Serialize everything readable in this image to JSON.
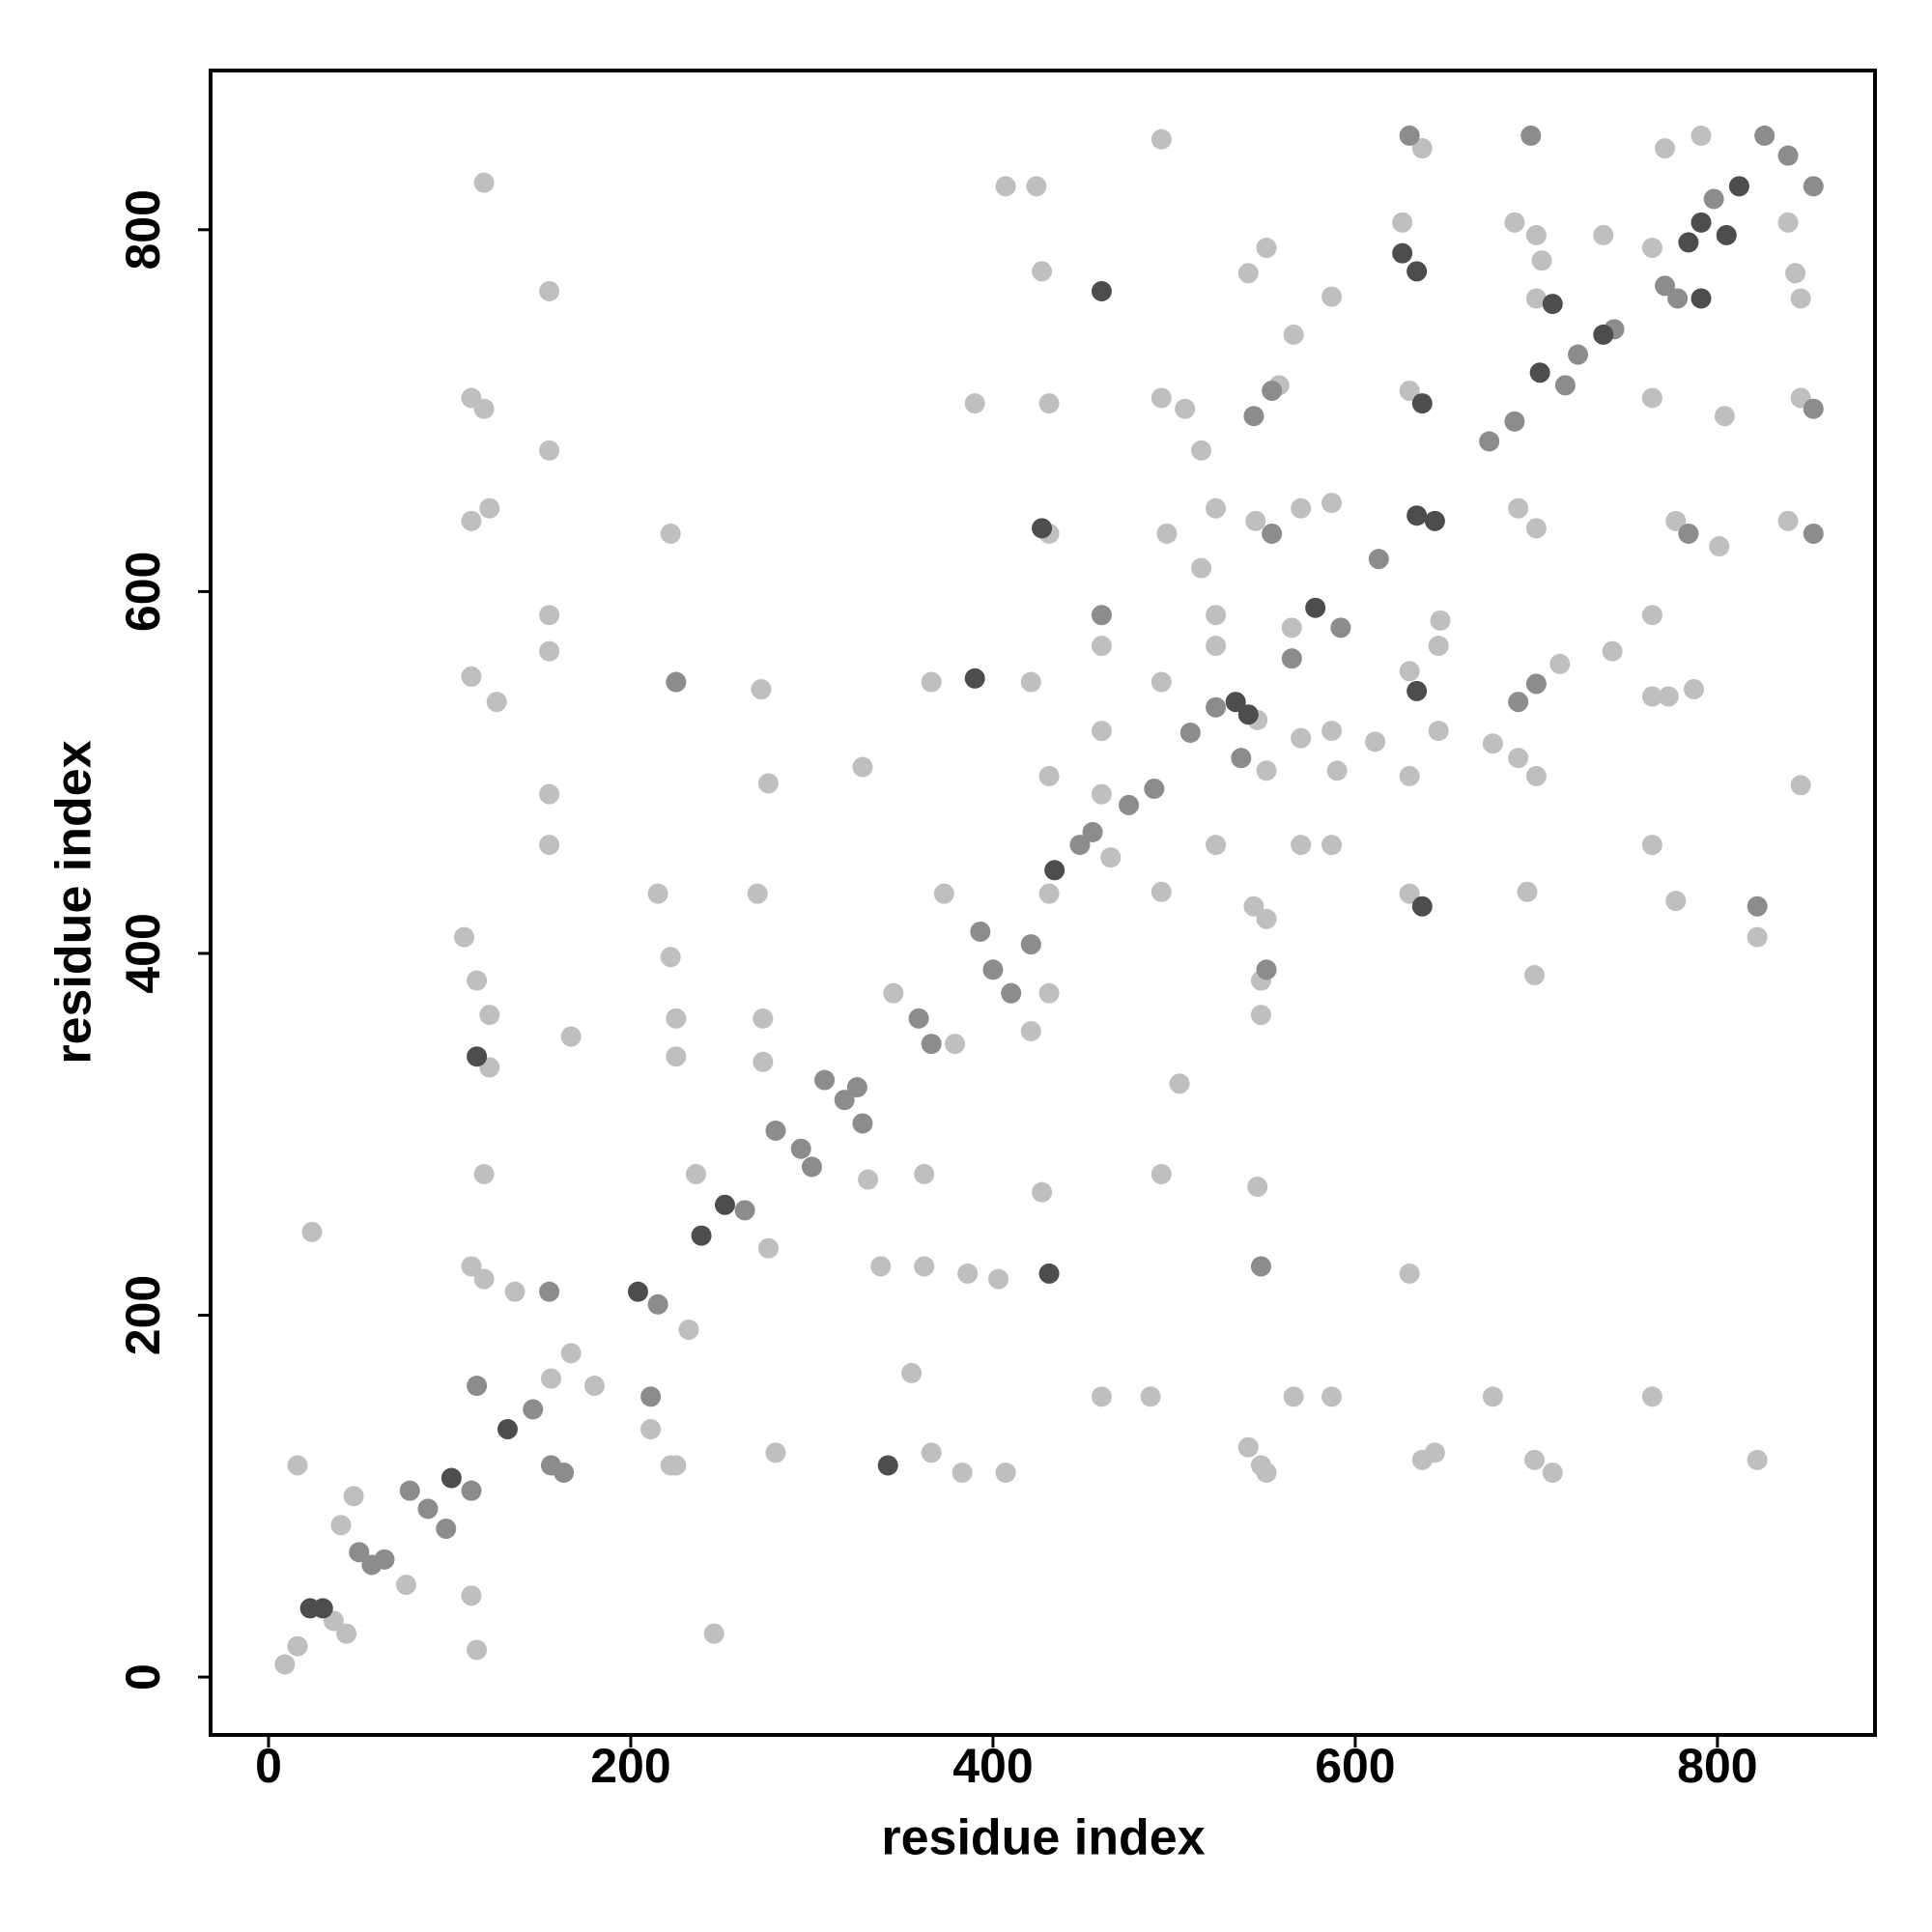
{
  "chart_data": {
    "type": "scatter",
    "x_label": "residue index",
    "y_label": "residue index",
    "xlim": [
      -32,
      887
    ],
    "ylim": [
      -32,
      888
    ],
    "xticks": [
      0,
      200,
      400,
      600,
      800
    ],
    "yticks": [
      0,
      200,
      400,
      600,
      800
    ],
    "grid": false,
    "series": [
      {
        "color": "#bfbfbf",
        "x": [
          9,
          16,
          36,
          43,
          40,
          47,
          76,
          112,
          115,
          16,
          24,
          246,
          156,
          167,
          180,
          345,
          379,
          373,
          431,
          421,
          431,
          465,
          551,
          565,
          764,
          839,
          843,
          771,
          791,
          764,
          119,
          155,
          155,
          112,
          119,
          112,
          122,
          155,
          155,
          112,
          126,
          155,
          155,
          108,
          115,
          122,
          122,
          167,
          119,
          112,
          119,
          136,
          222,
          215,
          222,
          225,
          225,
          222,
          211,
          232,
          236,
          225,
          272,
          276,
          270,
          273,
          273,
          276,
          280,
          328,
          331,
          338,
          362,
          355,
          366,
          362,
          366,
          390,
          383,
          386,
          407,
          403,
          407,
          424,
          427,
          431,
          431,
          421,
          431,
          427,
          460,
          460,
          460,
          460,
          487,
          493,
          493,
          496,
          493,
          493,
          493,
          503,
          506,
          515,
          515,
          523,
          523,
          523,
          523,
          541,
          551,
          558,
          545,
          544,
          551,
          548,
          548,
          546,
          541,
          548,
          551,
          546,
          566,
          570,
          570,
          570,
          587,
          587,
          587,
          587,
          587,
          566,
          590,
          611,
          626,
          637,
          630,
          630,
          630,
          630,
          630,
          637,
          644,
          647,
          646,
          646,
          676,
          676,
          688,
          700,
          703,
          700,
          690,
          700,
          713,
          690,
          700,
          695,
          699,
          699,
          709,
          737,
          742,
          764,
          764,
          764,
          764,
          773,
          787,
          777,
          777,
          804,
          801,
          822,
          822,
          839,
          846,
          846,
          846
        ],
        "values": [
          7,
          17,
          31,
          24,
          84,
          100,
          51,
          45,
          15,
          117,
          246,
          24,
          165,
          179,
          161,
          378,
          350,
          433,
          378,
          357,
          433,
          453,
          501,
          580,
          790,
          804,
          776,
          845,
          852,
          707,
          826,
          766,
          678,
          707,
          701,
          639,
          646,
          587,
          567,
          553,
          539,
          488,
          460,
          409,
          385,
          366,
          337,
          354,
          278,
          227,
          220,
          213,
          632,
          433,
          398,
          364,
          343,
          117,
          137,
          192,
          278,
          117,
          546,
          494,
          433,
          364,
          340,
          237,
          124,
          503,
          275,
          227,
          227,
          168,
          124,
          278,
          550,
          704,
          113,
          223,
          113,
          220,
          824,
          824,
          777,
          704,
          632,
          550,
          498,
          268,
          570,
          523,
          488,
          155,
          155,
          850,
          707,
          632,
          550,
          434,
          278,
          328,
          701,
          678,
          613,
          646,
          587,
          570,
          460,
          776,
          790,
          714,
          639,
          426,
          419,
          385,
          366,
          271,
          127,
          117,
          113,
          529,
          742,
          646,
          519,
          460,
          763,
          649,
          523,
          460,
          155,
          155,
          501,
          517,
          804,
          845,
          711,
          556,
          498,
          433,
          223,
          120,
          124,
          584,
          570,
          523,
          516,
          155,
          804,
          797,
          783,
          762,
          646,
          635,
          560,
          508,
          498,
          434,
          388,
          120,
          113,
          797,
          567,
          587,
          460,
          155,
          542,
          542,
          546,
          639,
          429,
          697,
          625,
          409,
          120,
          639,
          707,
          493,
          762
        ]
      },
      {
        "color": "#8c8c8c",
        "x": [
          50,
          57,
          64,
          78,
          88,
          98,
          112,
          115,
          146,
          156,
          163,
          215,
          263,
          280,
          294,
          300,
          307,
          318,
          325,
          328,
          359,
          366,
          393,
          400,
          410,
          421,
          448,
          455,
          475,
          489,
          509,
          523,
          537,
          565,
          592,
          613,
          674,
          688,
          716,
          723,
          743,
          771,
          778,
          798,
          826,
          839,
          853,
          155,
          225,
          211,
          460,
          544,
          554,
          554,
          551,
          548,
          630,
          697,
          690,
          700,
          784,
          822,
          853,
          853
        ],
        "values": [
          69,
          62,
          65,
          103,
          93,
          82,
          103,
          161,
          148,
          117,
          113,
          206,
          258,
          302,
          292,
          282,
          330,
          319,
          326,
          306,
          364,
          350,
          412,
          391,
          378,
          405,
          460,
          467,
          482,
          491,
          522,
          536,
          508,
          563,
          580,
          618,
          683,
          694,
          714,
          731,
          745,
          769,
          762,
          817,
          852,
          841,
          824,
          213,
          550,
          155,
          587,
          697,
          711,
          632,
          391,
          227,
          852,
          852,
          539,
          549,
          632,
          426,
          632,
          701
        ]
      },
      {
        "color": "#4d4d4d",
        "x": [
          23,
          30,
          101,
          132,
          204,
          239,
          252,
          434,
          534,
          541,
          578,
          634,
          644,
          702,
          737,
          791,
          784,
          791,
          805,
          812,
          115,
          342,
          390,
          427,
          431,
          460,
          626,
          634,
          637,
          634,
          637,
          709
        ],
        "values": [
          38,
          38,
          110,
          137,
          213,
          244,
          261,
          446,
          539,
          532,
          591,
          642,
          639,
          721,
          742,
          762,
          793,
          804,
          797,
          824,
          343,
          117,
          552,
          635,
          223,
          766,
          787,
          777,
          704,
          545,
          426,
          759
        ]
      }
    ]
  }
}
